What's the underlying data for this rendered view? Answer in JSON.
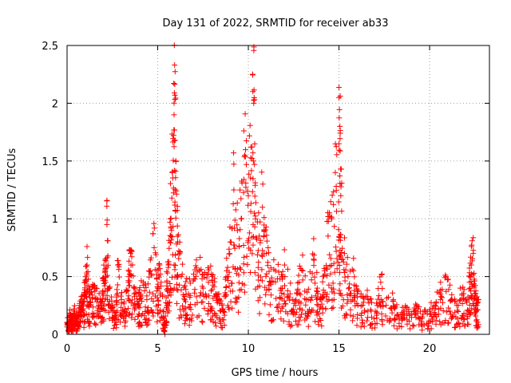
{
  "chart_data": {
    "type": "scatter",
    "title": "Day 131 of 2022, SRMTID for receiver ab33",
    "xlabel": "GPS time / hours",
    "ylabel": "SRMTID / TECUs",
    "xlim": [
      0,
      23.3
    ],
    "ylim": [
      0,
      2.5
    ],
    "xticks": [
      0,
      5,
      10,
      15,
      20
    ],
    "xtick_labels": [
      "0",
      "5",
      "10",
      "15",
      "20"
    ],
    "yticks": [
      0,
      0.5,
      1,
      1.5,
      2,
      2.5
    ],
    "ytick_labels": [
      "0",
      "0.5",
      "1",
      "1.5",
      "2",
      "2.5"
    ],
    "grid": true,
    "marker": "+",
    "series_color": "#ff0000",
    "series": [
      {
        "name": "SRMTID",
        "note": "approximately 2000 plus-markers; outline transcribed below, with the remaining points estimated around these",
        "points": [
          [
            0.0,
            0.1
          ],
          [
            0.1,
            0.05
          ],
          [
            0.15,
            0.18
          ],
          [
            0.2,
            0.12
          ],
          [
            0.3,
            0.08
          ],
          [
            0.4,
            0.2
          ],
          [
            0.5,
            0.14
          ],
          [
            0.6,
            0.1
          ],
          [
            0.7,
            0.25
          ],
          [
            0.8,
            0.3
          ],
          [
            0.9,
            0.22
          ],
          [
            1.0,
            0.45
          ],
          [
            1.1,
            0.6
          ],
          [
            1.2,
            0.35
          ],
          [
            1.3,
            0.28
          ],
          [
            1.5,
            0.4
          ],
          [
            1.7,
            0.3
          ],
          [
            1.9,
            0.25
          ],
          [
            2.0,
            0.48
          ],
          [
            2.1,
            0.55
          ],
          [
            2.2,
            0.95
          ],
          [
            2.3,
            0.4
          ],
          [
            2.5,
            0.2
          ],
          [
            2.7,
            0.15
          ],
          [
            2.8,
            0.6
          ],
          [
            3.0,
            0.3
          ],
          [
            3.2,
            0.22
          ],
          [
            3.4,
            0.5
          ],
          [
            3.5,
            0.7
          ],
          [
            3.7,
            0.35
          ],
          [
            3.9,
            0.25
          ],
          [
            4.0,
            0.3
          ],
          [
            4.2,
            0.45
          ],
          [
            4.4,
            0.3
          ],
          [
            4.6,
            0.55
          ],
          [
            4.8,
            0.75
          ],
          [
            5.0,
            0.4
          ],
          [
            5.1,
            0.6
          ],
          [
            5.3,
            0.2
          ],
          [
            5.4,
            0.0
          ],
          [
            5.5,
            0.45
          ],
          [
            5.6,
            0.6
          ],
          [
            5.7,
            1.0
          ],
          [
            5.8,
            1.4
          ],
          [
            5.9,
            1.9
          ],
          [
            5.95,
            2.07
          ],
          [
            6.0,
            1.5
          ],
          [
            6.1,
            0.8
          ],
          [
            6.3,
            0.5
          ],
          [
            6.5,
            0.42
          ],
          [
            6.7,
            0.35
          ],
          [
            7.0,
            0.48
          ],
          [
            7.3,
            0.55
          ],
          [
            7.5,
            0.4
          ],
          [
            7.8,
            0.45
          ],
          [
            8.0,
            0.5
          ],
          [
            8.2,
            0.35
          ],
          [
            8.4,
            0.3
          ],
          [
            8.6,
            0.22
          ],
          [
            8.8,
            0.55
          ],
          [
            9.0,
            0.8
          ],
          [
            9.2,
            1.25
          ],
          [
            9.4,
            0.9
          ],
          [
            9.6,
            1.0
          ],
          [
            9.8,
            1.55
          ],
          [
            10.0,
            1.2
          ],
          [
            10.2,
            1.62
          ],
          [
            10.3,
            2.0
          ],
          [
            10.4,
            1.0
          ],
          [
            10.6,
            0.85
          ],
          [
            10.8,
            1.3
          ],
          [
            11.0,
            0.7
          ],
          [
            11.2,
            0.45
          ],
          [
            11.5,
            0.55
          ],
          [
            11.8,
            0.4
          ],
          [
            12.0,
            0.6
          ],
          [
            12.3,
            0.35
          ],
          [
            12.6,
            0.25
          ],
          [
            12.8,
            0.45
          ],
          [
            13.0,
            0.55
          ],
          [
            13.3,
            0.3
          ],
          [
            13.6,
            0.65
          ],
          [
            13.8,
            0.4
          ],
          [
            14.0,
            0.3
          ],
          [
            14.2,
            0.55
          ],
          [
            14.4,
            0.85
          ],
          [
            14.6,
            1.0
          ],
          [
            14.8,
            1.4
          ],
          [
            15.0,
            1.65
          ],
          [
            15.05,
            1.8
          ],
          [
            15.1,
            1.2
          ],
          [
            15.3,
            0.7
          ],
          [
            15.5,
            0.5
          ],
          [
            15.8,
            0.55
          ],
          [
            16.0,
            0.35
          ],
          [
            16.3,
            0.25
          ],
          [
            16.6,
            0.3
          ],
          [
            17.0,
            0.2
          ],
          [
            17.3,
            0.45
          ],
          [
            17.6,
            0.25
          ],
          [
            18.0,
            0.3
          ],
          [
            18.3,
            0.15
          ],
          [
            18.6,
            0.2
          ],
          [
            19.0,
            0.18
          ],
          [
            19.3,
            0.25
          ],
          [
            19.6,
            0.15
          ],
          [
            20.0,
            0.2
          ],
          [
            20.3,
            0.25
          ],
          [
            20.6,
            0.35
          ],
          [
            20.9,
            0.5
          ],
          [
            21.2,
            0.3
          ],
          [
            21.5,
            0.25
          ],
          [
            21.8,
            0.35
          ],
          [
            22.0,
            0.3
          ],
          [
            22.2,
            0.45
          ],
          [
            22.3,
            0.6
          ],
          [
            22.4,
            0.7
          ],
          [
            22.5,
            0.35
          ],
          [
            22.6,
            0.25
          ],
          [
            22.7,
            0.3
          ]
        ]
      }
    ]
  }
}
